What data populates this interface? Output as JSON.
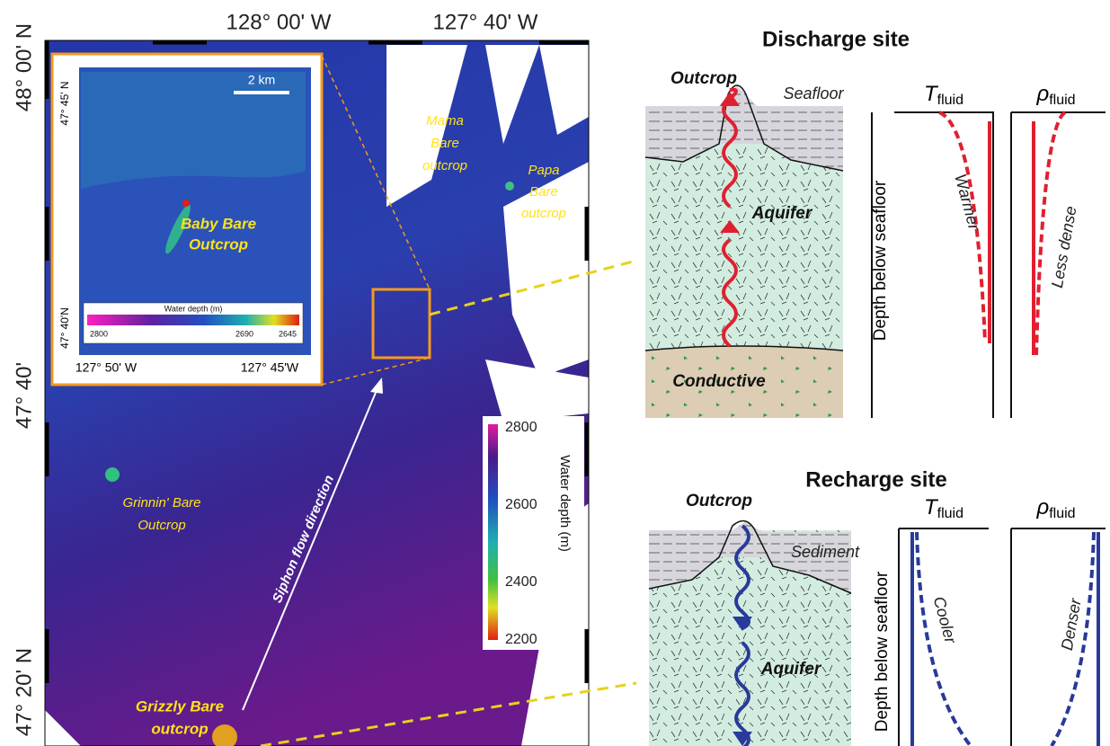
{
  "map": {
    "top_labels": [
      "128° 00' W",
      "127° 40' W"
    ],
    "left_labels": [
      "48° 00' N",
      "47° 40'",
      "47° 20' N"
    ],
    "mama": [
      "Mama",
      "Bare",
      "outcrop"
    ],
    "papa": [
      "Papa",
      "Bare",
      "outcrop"
    ],
    "grinnin": [
      "Grinnin' Bare",
      "Outcrop"
    ],
    "grizzly": [
      "Grizzly Bare",
      "outcrop"
    ],
    "flow_label": "Siphon flow direction",
    "colorbar": {
      "title": "Water depth (m)",
      "ticks": [
        "2800",
        "2600",
        "2400",
        "2200"
      ]
    }
  },
  "inset": {
    "top_label": "47° 45' N",
    "bottom_label": "47° 40'N",
    "x_labels": [
      "127° 50' W",
      "127° 45'W"
    ],
    "scale": "2 km",
    "feature": [
      "Baby Bare",
      "Outcrop"
    ],
    "colorbar": {
      "title": "Water depth (m)",
      "ticks": [
        "2800",
        "2690",
        "2645"
      ]
    }
  },
  "discharge": {
    "title": "Discharge site",
    "outcrop": "Outcrop",
    "seafloor": "Seafloor",
    "aquifer": "Aquifer",
    "conductive": "Conductive",
    "depth_axis": "Depth below seafloor",
    "temperature": {
      "symbol": "T",
      "subscript": "fluid",
      "trend": "Warmer"
    },
    "density": {
      "symbol": "ρ",
      "subscript": "fluid",
      "trend": "Less dense"
    }
  },
  "recharge": {
    "title": "Recharge site",
    "outcrop": "Outcrop",
    "sediment": "Sediment",
    "aquifer": "Aquifer",
    "depth_axis": "Depth below seafloor",
    "temperature": {
      "symbol": "T",
      "subscript": "fluid",
      "trend": "Cooler"
    },
    "density": {
      "symbol": "ρ",
      "subscript": "fluid",
      "trend": "Denser"
    }
  }
}
